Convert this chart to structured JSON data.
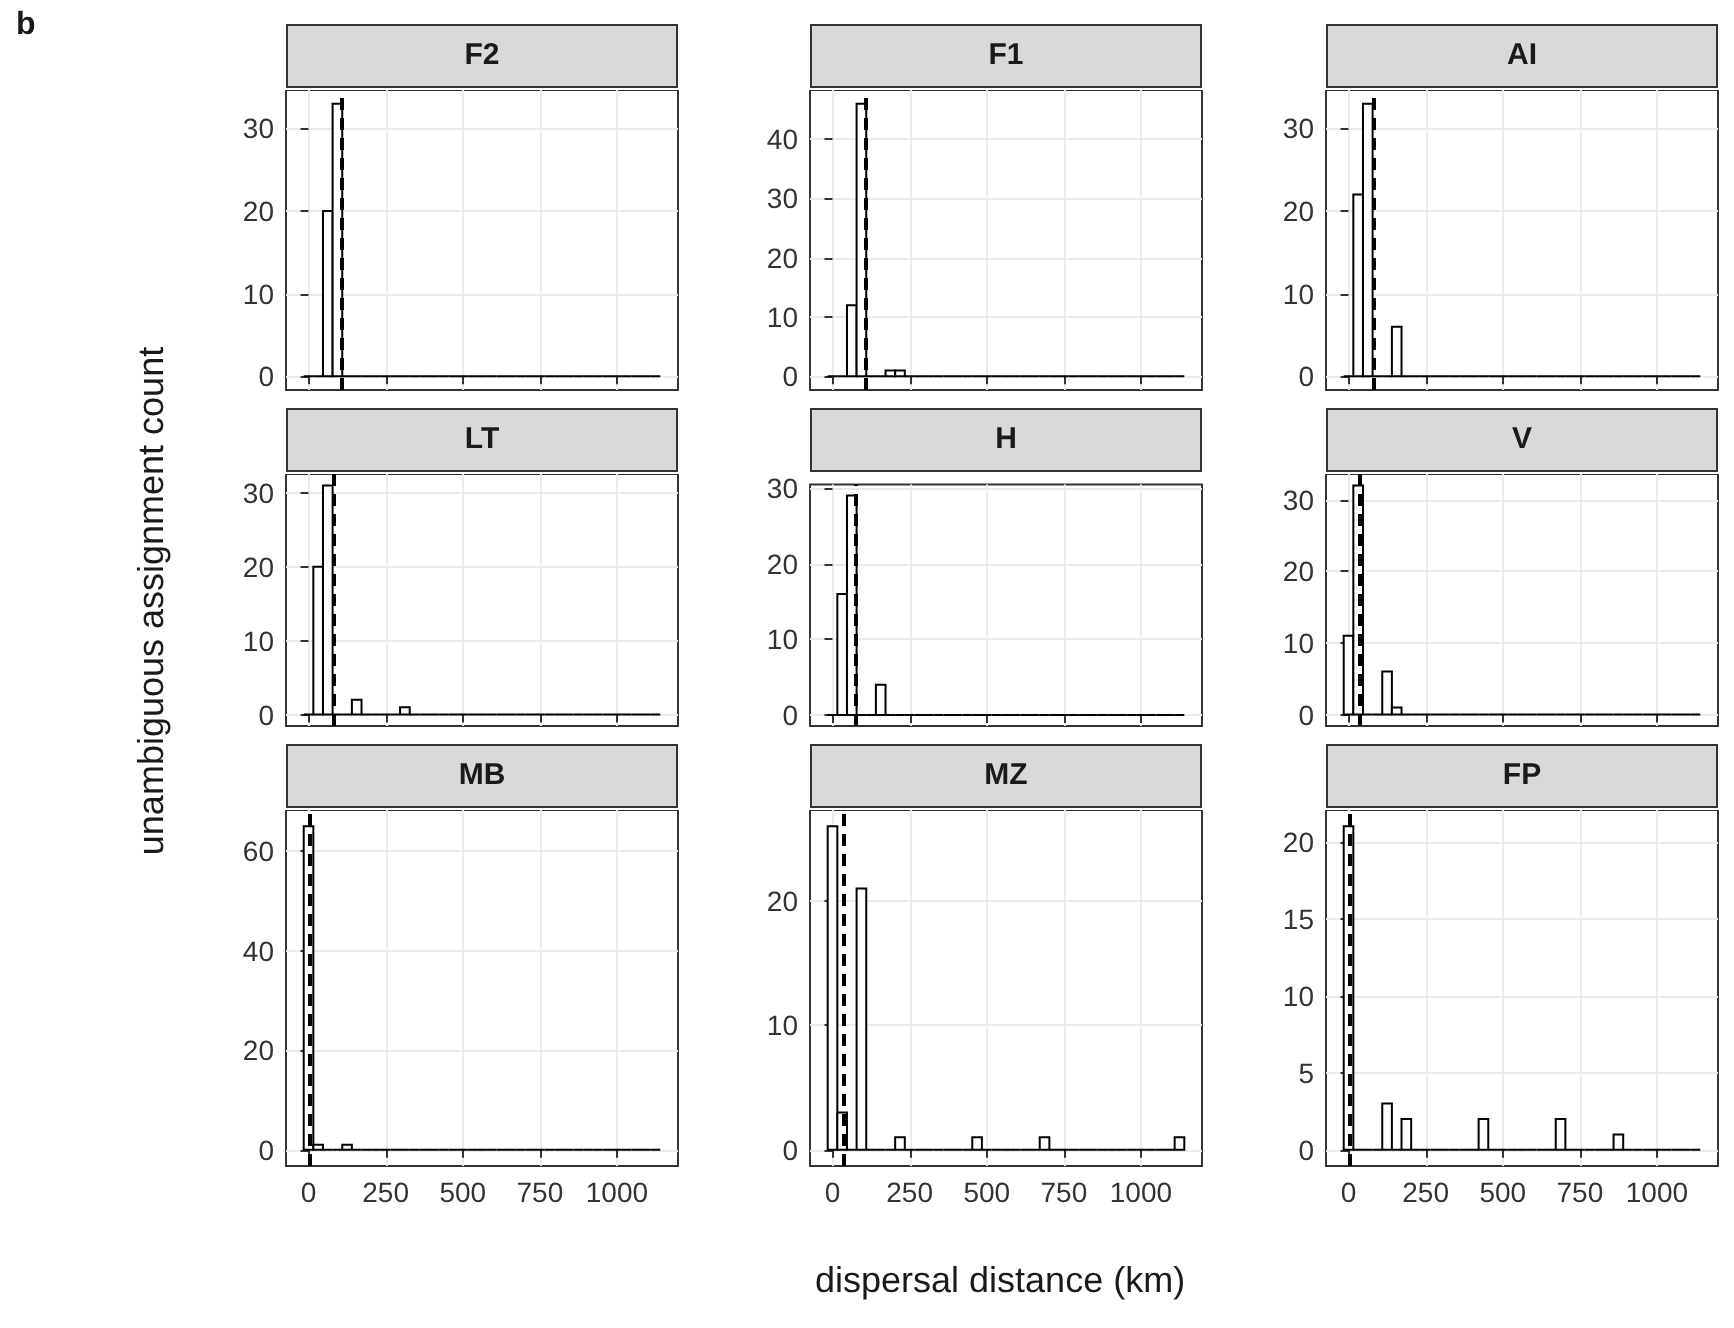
{
  "chart_data": [
    {
      "type": "histogram",
      "title": "F2",
      "annotations": [
        "b"
      ],
      "bins": [
        -15.625,
        15.625,
        46.875,
        78.125,
        109.375,
        140.625,
        171.875,
        203.125,
        234.375,
        265.625,
        296.875,
        328.125,
        359.375,
        390.625,
        421.875,
        453.125,
        484.375,
        515.625,
        546.875,
        578.125,
        609.375,
        640.625,
        671.875,
        703.125,
        734.375,
        765.625,
        796.875,
        828.125,
        859.375,
        890.625,
        921.875,
        953.125,
        984.375,
        1015.625,
        1046.875,
        1078.125,
        1109.375,
        1140.625
      ],
      "values": [
        0,
        0,
        20,
        33,
        0,
        0,
        0,
        0,
        0,
        0,
        0,
        0,
        0,
        0,
        0,
        0,
        0,
        0,
        0,
        0,
        0,
        0,
        0,
        0,
        0,
        0,
        0,
        0,
        0,
        0,
        0,
        0,
        0,
        0,
        0,
        0,
        0
      ],
      "color": "#000000",
      "xlim": [
        -73,
        1198
      ],
      "xticks": [
        0,
        250,
        500,
        750,
        1000
      ],
      "ylim": [
        -1.65,
        34.65
      ],
      "yticks": [
        0,
        10,
        20,
        30
      ],
      "grid": true,
      "tick_labels": "y",
      "ref_lines": [
        {
          "axis": "x",
          "value": 105,
          "color": "#000000",
          "line_style": "dashed"
        }
      ]
    },
    {
      "type": "histogram",
      "title": "F1",
      "bins": [
        -15.625,
        15.625,
        46.875,
        78.125,
        109.375,
        140.625,
        171.875,
        203.125,
        234.375,
        265.625,
        296.875,
        328.125,
        359.375,
        390.625,
        421.875,
        453.125,
        484.375,
        515.625,
        546.875,
        578.125,
        609.375,
        640.625,
        671.875,
        703.125,
        734.375,
        765.625,
        796.875,
        828.125,
        859.375,
        890.625,
        921.875,
        953.125,
        984.375,
        1015.625,
        1046.875,
        1078.125,
        1109.375,
        1140.625
      ],
      "values": [
        0,
        0,
        12,
        46,
        0,
        0,
        1,
        1,
        0,
        0,
        0,
        0,
        0,
        0,
        0,
        0,
        0,
        0,
        0,
        0,
        0,
        0,
        0,
        0,
        0,
        0,
        0,
        0,
        0,
        0,
        0,
        0,
        0,
        0,
        0,
        0,
        0
      ],
      "color": "#000000",
      "xlim": [
        -73,
        1198
      ],
      "xticks": [
        0,
        250,
        500,
        750,
        1000
      ],
      "ylim": [
        -2.3,
        48.3
      ],
      "yticks": [
        0,
        10,
        20,
        30,
        40
      ],
      "grid": true,
      "tick_labels": "y",
      "ref_lines": [
        {
          "axis": "x",
          "value": 105,
          "color": "#000000",
          "line_style": "dashed"
        }
      ]
    },
    {
      "type": "histogram",
      "title": "AI",
      "bins": [
        -15.625,
        15.625,
        46.875,
        78.125,
        109.375,
        140.625,
        171.875,
        203.125,
        234.375,
        265.625,
        296.875,
        328.125,
        359.375,
        390.625,
        421.875,
        453.125,
        484.375,
        515.625,
        546.875,
        578.125,
        609.375,
        640.625,
        671.875,
        703.125,
        734.375,
        765.625,
        796.875,
        828.125,
        859.375,
        890.625,
        921.875,
        953.125,
        984.375,
        1015.625,
        1046.875,
        1078.125,
        1109.375,
        1140.625
      ],
      "values": [
        0,
        22,
        33,
        0,
        0,
        6,
        0,
        0,
        0,
        0,
        0,
        0,
        0,
        0,
        0,
        0,
        0,
        0,
        0,
        0,
        0,
        0,
        0,
        0,
        0,
        0,
        0,
        0,
        0,
        0,
        0,
        0,
        0,
        0,
        0,
        0,
        0
      ],
      "color": "#000000",
      "xlim": [
        -73,
        1198
      ],
      "xticks": [
        0,
        250,
        500,
        750,
        1000
      ],
      "ylim": [
        -1.65,
        34.65
      ],
      "yticks": [
        0,
        10,
        20,
        30
      ],
      "grid": true,
      "tick_labels": "y",
      "ref_lines": [
        {
          "axis": "x",
          "value": 78,
          "color": "#000000",
          "line_style": "dashed"
        }
      ]
    },
    {
      "type": "histogram",
      "title": "LT",
      "ylabel": "unambiguous assignment count",
      "bins": [
        -15.625,
        15.625,
        46.875,
        78.125,
        109.375,
        140.625,
        171.875,
        203.125,
        234.375,
        265.625,
        296.875,
        328.125,
        359.375,
        390.625,
        421.875,
        453.125,
        484.375,
        515.625,
        546.875,
        578.125,
        609.375,
        640.625,
        671.875,
        703.125,
        734.375,
        765.625,
        796.875,
        828.125,
        859.375,
        890.625,
        921.875,
        953.125,
        984.375,
        1015.625,
        1046.875,
        1078.125,
        1109.375,
        1140.625
      ],
      "values": [
        0,
        20,
        31,
        0,
        0,
        2,
        0,
        0,
        0,
        0,
        1,
        0,
        0,
        0,
        0,
        0,
        0,
        0,
        0,
        0,
        0,
        0,
        0,
        0,
        0,
        0,
        0,
        0,
        0,
        0,
        0,
        0,
        0,
        0,
        0,
        0,
        0
      ],
      "color": "#000000",
      "xlim": [
        -73,
        1198
      ],
      "xticks": [
        0,
        250,
        500,
        750,
        1000
      ],
      "ylim": [
        -1.55,
        32.55
      ],
      "yticks": [
        0,
        10,
        20,
        30
      ],
      "grid": true,
      "tick_labels": "y",
      "ref_lines": [
        {
          "axis": "x",
          "value": 81,
          "color": "#000000",
          "line_style": "dashed"
        }
      ]
    },
    {
      "type": "histogram",
      "title": "H",
      "bins": [
        -15.625,
        15.625,
        46.875,
        78.125,
        109.375,
        140.625,
        171.875,
        203.125,
        234.375,
        265.625,
        296.875,
        328.125,
        359.375,
        390.625,
        421.875,
        453.125,
        484.375,
        515.625,
        546.875,
        578.125,
        609.375,
        640.625,
        671.875,
        703.125,
        734.375,
        765.625,
        796.875,
        828.125,
        859.375,
        890.625,
        921.875,
        953.125,
        984.375,
        1015.625,
        1046.875,
        1078.125,
        1109.375,
        1140.625
      ],
      "values": [
        0,
        16,
        29,
        0,
        0,
        4,
        0,
        0,
        0,
        0,
        0,
        0,
        0,
        0,
        0,
        0,
        0,
        0,
        0,
        0,
        0,
        0,
        0,
        0,
        0,
        0,
        0,
        0,
        0,
        0,
        0,
        0,
        0,
        0,
        0,
        0,
        0
      ],
      "color": "#000000",
      "xlim": [
        -73,
        1198
      ],
      "xticks": [
        0,
        250,
        500,
        750,
        1000
      ],
      "ylim": [
        -1.45,
        30.45
      ],
      "yticks": [
        0,
        10,
        20,
        30
      ],
      "grid": true,
      "tick_labels": "y",
      "ref_lines": [
        {
          "axis": "x",
          "value": 77,
          "color": "#000000",
          "line_style": "dashed"
        }
      ]
    },
    {
      "type": "histogram",
      "title": "V",
      "bins": [
        -15.625,
        15.625,
        46.875,
        78.125,
        109.375,
        140.625,
        171.875,
        203.125,
        234.375,
        265.625,
        296.875,
        328.125,
        359.375,
        390.625,
        421.875,
        453.125,
        484.375,
        515.625,
        546.875,
        578.125,
        609.375,
        640.625,
        671.875,
        703.125,
        734.375,
        765.625,
        796.875,
        828.125,
        859.375,
        890.625,
        921.875,
        953.125,
        984.375,
        1015.625,
        1046.875,
        1078.125,
        1109.375,
        1140.625
      ],
      "values": [
        11,
        32,
        0,
        0,
        6,
        1,
        0,
        0,
        0,
        0,
        0,
        0,
        0,
        0,
        0,
        0,
        0,
        0,
        0,
        0,
        0,
        0,
        0,
        0,
        0,
        0,
        0,
        0,
        0,
        0,
        0,
        0,
        0,
        0,
        0,
        0,
        0
      ],
      "color": "#000000",
      "xlim": [
        -73,
        1198
      ],
      "xticks": [
        0,
        250,
        500,
        750,
        1000
      ],
      "ylim": [
        -1.6,
        33.6
      ],
      "yticks": [
        0,
        10,
        20,
        30
      ],
      "grid": true,
      "tick_labels": "y",
      "ref_lines": [
        {
          "axis": "x",
          "value": 35,
          "color": "#000000",
          "line_style": "dashed"
        }
      ]
    },
    {
      "type": "histogram",
      "title": "MB",
      "bins": [
        -15.625,
        15.625,
        46.875,
        78.125,
        109.375,
        140.625,
        171.875,
        203.125,
        234.375,
        265.625,
        296.875,
        328.125,
        359.375,
        390.625,
        421.875,
        453.125,
        484.375,
        515.625,
        546.875,
        578.125,
        609.375,
        640.625,
        671.875,
        703.125,
        734.375,
        765.625,
        796.875,
        828.125,
        859.375,
        890.625,
        921.875,
        953.125,
        984.375,
        1015.625,
        1046.875,
        1078.125,
        1109.375,
        1140.625
      ],
      "values": [
        65,
        1,
        0,
        0,
        1,
        0,
        0,
        0,
        0,
        0,
        0,
        0,
        0,
        0,
        0,
        0,
        0,
        0,
        0,
        0,
        0,
        0,
        0,
        0,
        0,
        0,
        0,
        0,
        0,
        0,
        0,
        0,
        0,
        0,
        0,
        0,
        0
      ],
      "color": "#000000",
      "xlim": [
        -73,
        1198
      ],
      "xticks": [
        0,
        250,
        500,
        750,
        1000
      ],
      "ylim": [
        -3.25,
        68.25
      ],
      "yticks": [
        0,
        20,
        40,
        60
      ],
      "grid": true,
      "ref_lines": [
        {
          "axis": "x",
          "value": 2,
          "color": "#000000",
          "line_style": "dashed"
        }
      ]
    },
    {
      "type": "histogram",
      "title": "MZ",
      "xlabel": "dispersal distance (km)",
      "bins": [
        -15.625,
        15.625,
        46.875,
        78.125,
        109.375,
        140.625,
        171.875,
        203.125,
        234.375,
        265.625,
        296.875,
        328.125,
        359.375,
        390.625,
        421.875,
        453.125,
        484.375,
        515.625,
        546.875,
        578.125,
        609.375,
        640.625,
        671.875,
        703.125,
        734.375,
        765.625,
        796.875,
        828.125,
        859.375,
        890.625,
        921.875,
        953.125,
        984.375,
        1015.625,
        1046.875,
        1078.125,
        1109.375,
        1140.625
      ],
      "values": [
        26,
        3,
        0,
        21,
        0,
        0,
        0,
        1,
        0,
        0,
        0,
        0,
        0,
        0,
        0,
        1,
        0,
        0,
        0,
        0,
        0,
        0,
        1,
        0,
        0,
        0,
        0,
        0,
        0,
        0,
        0,
        0,
        0,
        0,
        0,
        0,
        1
      ],
      "color": "#000000",
      "xlim": [
        -73,
        1198
      ],
      "xticks": [
        0,
        250,
        500,
        750,
        1000
      ],
      "ylim": [
        -1.3,
        27.3
      ],
      "yticks": [
        0,
        10,
        20
      ],
      "grid": true,
      "ref_lines": [
        {
          "axis": "x",
          "value": 38,
          "color": "#000000",
          "line_style": "dashed"
        }
      ]
    },
    {
      "type": "histogram",
      "title": "FP",
      "bins": [
        -15.625,
        15.625,
        46.875,
        78.125,
        109.375,
        140.625,
        171.875,
        203.125,
        234.375,
        265.625,
        296.875,
        328.125,
        359.375,
        390.625,
        421.875,
        453.125,
        484.375,
        515.625,
        546.875,
        578.125,
        609.375,
        640.625,
        671.875,
        703.125,
        734.375,
        765.625,
        796.875,
        828.125,
        859.375,
        890.625,
        921.875,
        953.125,
        984.375,
        1015.625,
        1046.875,
        1078.125,
        1109.375,
        1140.625
      ],
      "values": [
        21,
        0,
        0,
        0,
        3,
        0,
        2,
        0,
        0,
        0,
        0,
        0,
        0,
        0,
        2,
        0,
        0,
        0,
        0,
        0,
        0,
        0,
        2,
        0,
        0,
        0,
        0,
        0,
        1,
        0,
        0,
        0,
        0,
        0,
        0,
        0,
        0
      ],
      "color": "#000000",
      "xlim": [
        -73,
        1198
      ],
      "xticks": [
        0,
        250,
        500,
        750,
        1000
      ],
      "ylim": [
        -1.05,
        22.05
      ],
      "yticks": [
        0,
        5,
        10,
        15,
        20
      ],
      "grid": true,
      "ref_lines": [
        {
          "axis": "x",
          "value": 0,
          "color": "#000000",
          "line_style": "dashed"
        }
      ]
    }
  ]
}
